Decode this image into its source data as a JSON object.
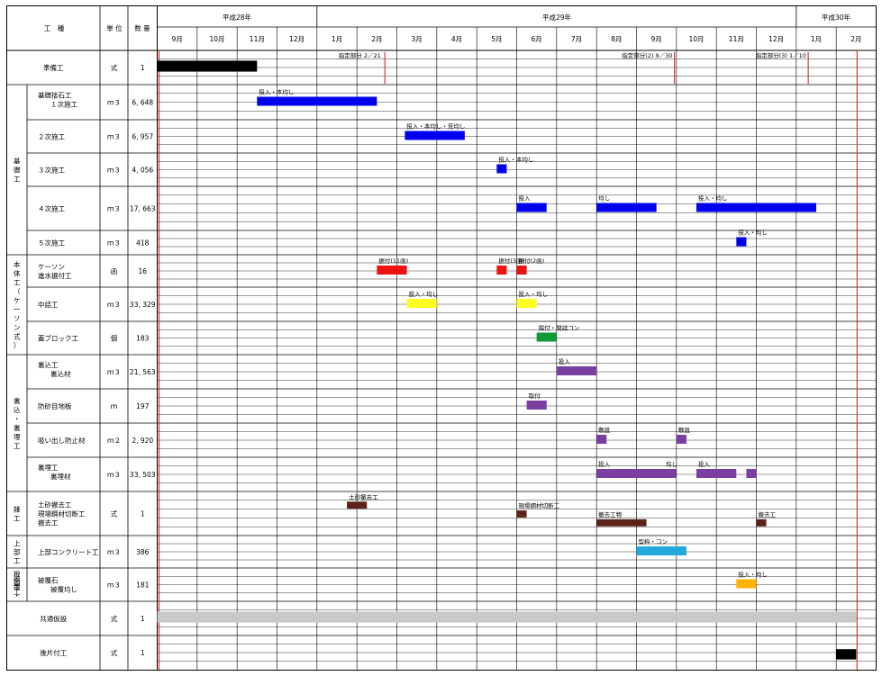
{
  "header": {
    "kouji": "工　種",
    "tani": "単 位",
    "suryo": "数 量",
    "years": [
      "平成28年",
      "平成29年",
      "平成30年"
    ],
    "months": [
      "9月",
      "10月",
      "11月",
      "12月",
      "1月",
      "2月",
      "3月",
      "4月",
      "5月",
      "6月",
      "7月",
      "8月",
      "9月",
      "10月",
      "11月",
      "12月",
      "1月",
      "2月"
    ]
  },
  "groups": [
    {
      "label": "基礎工"
    },
    {
      "label": "本体工（ケーソン式）"
    },
    {
      "label": "裏込・裏埋工"
    },
    {
      "label": "雑工"
    },
    {
      "label": "上部工"
    },
    {
      "label": "根被固覆工・"
    }
  ],
  "rows": [
    {
      "names": [
        "準備工"
      ],
      "unit": "式",
      "qty": "1"
    },
    {
      "names": [
        "基礎捨石工",
        "１次施工"
      ],
      "unit": "ｍ３",
      "qty": "6, 648"
    },
    {
      "names": [
        "２次施工"
      ],
      "unit": "ｍ３",
      "qty": "6, 957"
    },
    {
      "names": [
        "３次施工"
      ],
      "unit": "ｍ３",
      "qty": "4, 056"
    },
    {
      "names": [
        "４次施工"
      ],
      "unit": "ｍ３",
      "qty": "17, 663"
    },
    {
      "names": [
        "５次施工"
      ],
      "unit": "ｍ３",
      "qty": "418"
    },
    {
      "names": [
        "ケーソン",
        "進水据付工"
      ],
      "unit": "函",
      "qty": "16"
    },
    {
      "names": [
        "中詰工"
      ],
      "unit": "ｍ３",
      "qty": "33, 329"
    },
    {
      "names": [
        "蓋ブロック工"
      ],
      "unit": "個",
      "qty": "183"
    },
    {
      "names": [
        "裏込工",
        "裏込材"
      ],
      "unit": "ｍ３",
      "qty": "21, 563"
    },
    {
      "names": [
        "防砂目地板"
      ],
      "unit": "ｍ",
      "qty": "197"
    },
    {
      "names": [
        "吸い出し防止材"
      ],
      "unit": "ｍ２",
      "qty": "2, 920"
    },
    {
      "names": [
        "裏埋工",
        "裏埋材"
      ],
      "unit": "ｍ３",
      "qty": "33, 503"
    },
    {
      "names": [
        "土砂撤去工",
        "現場鋼材切断工",
        "撤去工"
      ],
      "unit": "式",
      "qty": "1"
    },
    {
      "names": [
        "上部コンクリート工"
      ],
      "unit": "ｍ３",
      "qty": "386"
    },
    {
      "names": [
        "被覆石",
        "被覆均し"
      ],
      "unit": "ｍ３",
      "qty": "181"
    },
    {
      "names": [
        "共通仮設"
      ],
      "unit": "式",
      "qty": "1"
    },
    {
      "names": [
        "後片付工"
      ],
      "unit": "式",
      "qty": "1"
    }
  ],
  "milestones": [
    {
      "label": "指定部分 2／21"
    },
    {
      "label": "指定部分(2) 9／30"
    },
    {
      "label": "指定部分(3) 1／10"
    }
  ],
  "colors": {
    "black": "#000000",
    "blue": "#0000ee",
    "red": "#ee1111",
    "yellow": "#ffff22",
    "green": "#119933",
    "purple": "#7a3fa0",
    "brown": "#5a2218",
    "cyan": "#22aadd",
    "orange": "#ffb300",
    "gray": "#c8c8c8",
    "milestone": "#dd3333"
  },
  "bars": [
    {
      "row": 0,
      "start": 0,
      "end": 2.5,
      "color": "black"
    },
    {
      "row": 1,
      "start": 2.5,
      "end": 5.5,
      "color": "blue",
      "label": "投入・本均し"
    },
    {
      "row": 2,
      "start": 6.2,
      "end": 7.7,
      "color": "blue",
      "label": "投入・本均し・荒均し"
    },
    {
      "row": 3,
      "start": 8.5,
      "end": 8.75,
      "color": "blue",
      "label": "投入・本均し"
    },
    {
      "row": 4,
      "start": 9.0,
      "end": 9.75,
      "color": "blue",
      "label": "投入"
    },
    {
      "row": 4,
      "start": 11.0,
      "end": 12.5,
      "color": "blue",
      "label": "均し"
    },
    {
      "row": 4,
      "start": 13.5,
      "end": 16.5,
      "color": "blue",
      "label": "投入・均し"
    },
    {
      "row": 5,
      "start": 14.5,
      "end": 14.75,
      "color": "blue",
      "label": "投入・均し"
    },
    {
      "row": 6,
      "start": 5.5,
      "end": 6.25,
      "color": "red",
      "label": "据付(11函)"
    },
    {
      "row": 6,
      "start": 8.5,
      "end": 8.75,
      "color": "red",
      "label": "据付(3函)"
    },
    {
      "row": 6,
      "start": 9.0,
      "end": 9.25,
      "color": "red",
      "label": "据付(2函)"
    },
    {
      "row": 7,
      "start": 6.25,
      "end": 7.0,
      "color": "yellow",
      "label": "投入・均し"
    },
    {
      "row": 7,
      "start": 9.0,
      "end": 9.5,
      "color": "yellow",
      "label": "投入・均し"
    },
    {
      "row": 8,
      "start": 9.5,
      "end": 10.0,
      "color": "green",
      "label": "据付・間詰コン"
    },
    {
      "row": 9,
      "start": 10.0,
      "end": 11.0,
      "color": "purple",
      "label": "投入"
    },
    {
      "row": 10,
      "start": 9.25,
      "end": 9.75,
      "color": "purple",
      "label": "取付"
    },
    {
      "row": 11,
      "start": 11.0,
      "end": 11.25,
      "color": "purple",
      "label": "敷設"
    },
    {
      "row": 11,
      "start": 13.0,
      "end": 13.25,
      "color": "purple",
      "label": "敷設"
    },
    {
      "row": 12,
      "start": 11.0,
      "end": 13.0,
      "color": "purple",
      "label": "投入"
    },
    {
      "row": 12,
      "start": 13.5,
      "end": 14.5,
      "color": "purple",
      "label": "投入"
    },
    {
      "row": 12,
      "start": 14.75,
      "end": 15.0,
      "color": "purple"
    },
    {
      "row": 13,
      "start": 4.75,
      "end": 5.25,
      "color": "brown",
      "label": "土砂撤去工",
      "line": 1
    },
    {
      "row": 13,
      "start": 9.0,
      "end": 9.25,
      "color": "brown",
      "label": "現場鋼材切断工",
      "line": 2
    },
    {
      "row": 13,
      "start": 11.0,
      "end": 12.25,
      "color": "brown",
      "label": "撤去工物",
      "line": 3
    },
    {
      "row": 13,
      "start": 15.0,
      "end": 15.25,
      "color": "brown",
      "label": "撤去工",
      "line": 3
    },
    {
      "row": 14,
      "start": 12.0,
      "end": 13.25,
      "color": "cyan",
      "label": "型枠・コン"
    },
    {
      "row": 15,
      "start": 14.5,
      "end": 15.0,
      "color": "orange",
      "label": "投入・均し"
    },
    {
      "row": 16,
      "start": 0,
      "end": 17.5,
      "color": "gray"
    },
    {
      "row": 17,
      "start": 17.0,
      "end": 17.5,
      "color": "black"
    }
  ],
  "extra_labels": [
    {
      "row": 12,
      "at": 13.0,
      "text": "均し"
    }
  ],
  "chart_data": {
    "type": "gantt",
    "period": [
      "平成28年9月",
      "平成30年2月"
    ],
    "grid": true
  }
}
